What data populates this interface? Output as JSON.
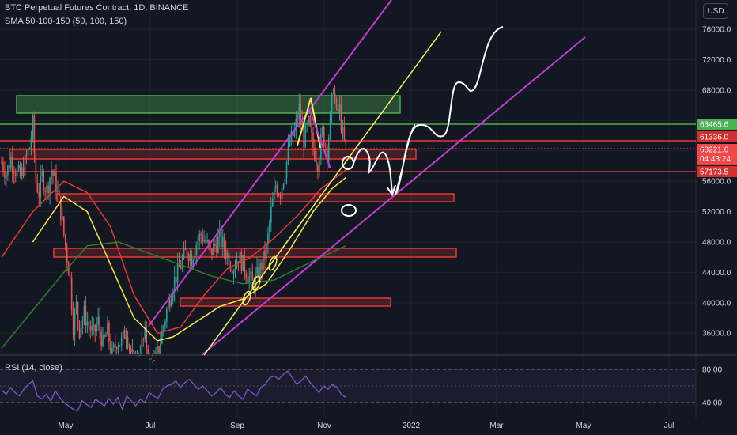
{
  "header": {
    "symbol_line": "BTC Perpetual Futures Contract, 1D, BINANCE",
    "sma_line": "SMA 50-100-150 (50, 100, 150)",
    "currency_button": "USD"
  },
  "rsi_panel": {
    "label": "RSI (14, close)",
    "levels": [
      "80.00",
      "40.00"
    ]
  },
  "time_axis": [
    "May",
    "Jul",
    "Sep",
    "Nov",
    "2022",
    "Mar",
    "May",
    "Jul"
  ],
  "price_axis": [
    "76000.0",
    "72000.0",
    "68000.0",
    "56000.0",
    "52000.0",
    "48000.0",
    "44000.0",
    "40000.0",
    "36000.0"
  ],
  "price_tags": [
    {
      "label": "63465.6",
      "color": "#4caf50"
    },
    {
      "label": "61336.0",
      "color": "#d32f2f"
    },
    {
      "label": "60221.6",
      "sublabel": "04:43:24",
      "color": "#f0474b"
    },
    {
      "label": "57173.5",
      "color": "#d32f2f"
    }
  ],
  "colors": {
    "background": "#131722",
    "up": "#26a69a",
    "down": "#ef5350",
    "sma50": "#f5e642",
    "sma100": "#e53935",
    "sma150": "#2e7d32",
    "channel": "#c43ad6",
    "trendline": "#f5f05a",
    "zone_red": "#e53935",
    "zone_green": "#4caf50",
    "rsi": "#7e57c2"
  },
  "chart_data": {
    "type": "candlestick",
    "title": "BTC Perpetual Futures Contract, 1D, BINANCE",
    "indicators": [
      "SMA 50",
      "SMA 100",
      "SMA 150",
      "RSI 14"
    ],
    "x_ticks": [
      "May",
      "Jul",
      "Sep",
      "Nov",
      "2022",
      "Mar",
      "May",
      "Jul"
    ],
    "y_range": [
      34000,
      78000
    ],
    "y_ticks": [
      36000,
      40000,
      44000,
      48000,
      52000,
      56000,
      60000,
      64000,
      68000,
      72000,
      76000
    ],
    "last_price": 60221.6,
    "horizontal_levels": [
      63465.6,
      61336.0,
      57173.5
    ],
    "price_path": [
      [
        0,
        58500
      ],
      [
        3,
        57000
      ],
      [
        6,
        59000
      ],
      [
        9,
        57500
      ],
      [
        12,
        56500
      ],
      [
        15,
        58500
      ],
      [
        18,
        60500
      ],
      [
        20,
        63400
      ],
      [
        22,
        56000
      ],
      [
        24,
        54500
      ],
      [
        26,
        56500
      ],
      [
        29,
        54800
      ],
      [
        32,
        57500
      ],
      [
        35,
        55500
      ],
      [
        38,
        52000
      ],
      [
        40,
        49000
      ],
      [
        42,
        46000
      ],
      [
        44,
        43000
      ],
      [
        46,
        37000
      ],
      [
        48,
        39500
      ],
      [
        50,
        36500
      ],
      [
        53,
        38500
      ],
      [
        56,
        37000
      ],
      [
        59,
        35800
      ],
      [
        62,
        37500
      ],
      [
        65,
        34500
      ],
      [
        68,
        36200
      ],
      [
        71,
        33000
      ],
      [
        74,
        35000
      ],
      [
        77,
        34800
      ],
      [
        80,
        36500
      ],
      [
        83,
        33500
      ],
      [
        86,
        31500
      ],
      [
        89,
        34000
      ],
      [
        92,
        35500
      ],
      [
        95,
        32000
      ],
      [
        98,
        31800
      ],
      [
        101,
        34000
      ],
      [
        104,
        37000
      ],
      [
        107,
        40000
      ],
      [
        110,
        42500
      ],
      [
        113,
        44000
      ],
      [
        116,
        45500
      ],
      [
        119,
        47000
      ],
      [
        122,
        46000
      ],
      [
        125,
        47800
      ],
      [
        128,
        49000
      ],
      [
        131,
        48000
      ],
      [
        134,
        46500
      ],
      [
        137,
        47500
      ],
      [
        140,
        48500
      ],
      [
        143,
        47200
      ],
      [
        146,
        45800
      ],
      [
        149,
        44800
      ],
      [
        152,
        46200
      ],
      [
        155,
        45000
      ],
      [
        158,
        43800
      ],
      [
        161,
        42500
      ],
      [
        164,
        43500
      ],
      [
        167,
        45000
      ],
      [
        170,
        47000
      ],
      [
        173,
        52000
      ],
      [
        176,
        55500
      ],
      [
        179,
        54500
      ],
      [
        182,
        57500
      ],
      [
        185,
        61000
      ],
      [
        188,
        62500
      ],
      [
        191,
        65500
      ],
      [
        194,
        61500
      ],
      [
        197,
        63500
      ],
      [
        200,
        60500
      ],
      [
        203,
        58500
      ],
      [
        206,
        62500
      ],
      [
        209,
        60000
      ],
      [
        211,
        64000
      ],
      [
        213,
        68800
      ],
      [
        215,
        64500
      ],
      [
        217,
        65500
      ],
      [
        219,
        62000
      ],
      [
        221,
        60200
      ]
    ],
    "sma": [
      {
        "name": "SMA 50",
        "points": [
          [
            20,
            48000
          ],
          [
            40,
            54000
          ],
          [
            55,
            52000
          ],
          [
            70,
            45000
          ],
          [
            85,
            38000
          ],
          [
            100,
            35000
          ],
          [
            110,
            35500
          ],
          [
            125,
            37500
          ],
          [
            140,
            39500
          ],
          [
            155,
            40500
          ],
          [
            170,
            42500
          ],
          [
            185,
            47000
          ],
          [
            200,
            52000
          ],
          [
            212,
            55000
          ],
          [
            221,
            56500
          ]
        ]
      },
      {
        "name": "SMA 100",
        "points": [
          [
            0,
            46000
          ],
          [
            20,
            52000
          ],
          [
            40,
            56000
          ],
          [
            55,
            54500
          ],
          [
            70,
            50000
          ],
          [
            85,
            41000
          ],
          [
            100,
            36000
          ],
          [
            115,
            36800
          ],
          [
            130,
            41000
          ],
          [
            145,
            44500
          ],
          [
            160,
            46000
          ],
          [
            175,
            48500
          ],
          [
            190,
            51500
          ],
          [
            205,
            55000
          ],
          [
            221,
            57500
          ]
        ]
      },
      {
        "name": "SMA 150",
        "points": [
          [
            0,
            34000
          ],
          [
            20,
            39000
          ],
          [
            40,
            44000
          ],
          [
            55,
            47500
          ],
          [
            75,
            48000
          ],
          [
            95,
            46500
          ],
          [
            115,
            45000
          ],
          [
            135,
            43500
          ],
          [
            155,
            42500
          ],
          [
            175,
            43000
          ],
          [
            190,
            44500
          ],
          [
            205,
            46000
          ],
          [
            221,
            47500
          ]
        ]
      }
    ],
    "rsi": {
      "levels": [
        80,
        40
      ],
      "values": [
        55,
        50,
        58,
        52,
        48,
        56,
        62,
        66,
        48,
        44,
        50,
        42,
        54,
        46,
        40,
        36,
        32,
        30,
        42,
        38,
        34,
        44,
        40,
        36,
        45,
        38,
        46,
        32,
        48,
        42,
        36,
        44,
        40,
        52,
        48,
        45,
        56,
        60,
        62,
        66,
        58,
        64,
        68,
        62,
        56,
        60,
        54,
        48,
        52,
        58,
        50,
        46,
        54,
        48,
        44,
        56,
        52,
        48,
        58,
        62,
        70,
        72,
        68,
        74,
        78,
        70,
        62,
        66,
        72,
        64,
        58,
        52,
        60,
        56,
        62,
        58,
        50,
        46
      ]
    }
  }
}
